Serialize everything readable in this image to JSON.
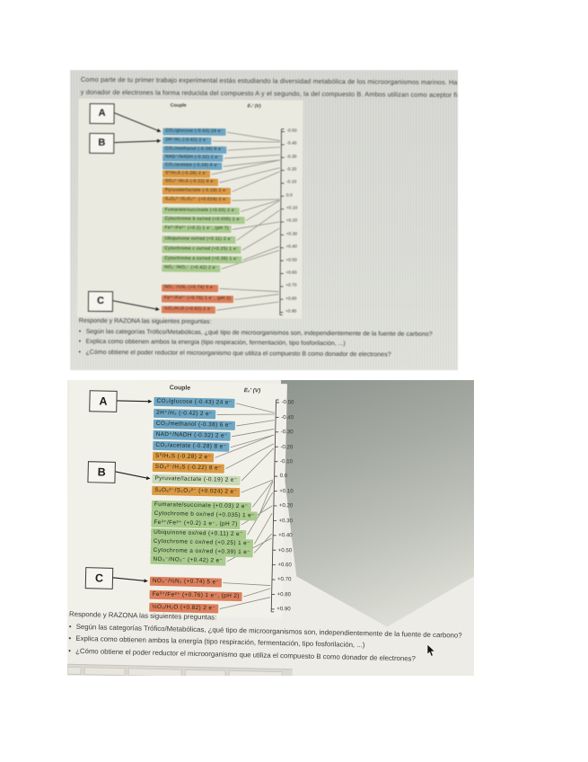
{
  "intro": {
    "line1": "Como parte de tu primer trabajo experimental estás estudiando la diversidad metabólica de los microorganismos marinos. Has",
    "line2": "y donador de electrones la forma reducida del compuesto A y el segundo, la del compuesto B. Ambos utilizan como aceptor final"
  },
  "diagram": {
    "couple_header": "Couple",
    "axis_label": "E₀′ (V)",
    "axis_ticks": [
      "-0.50",
      "-0.40",
      "-0.30",
      "-0.20",
      "-0.10",
      "0.0",
      "+0.10",
      "+0.20",
      "+0.30",
      "+0.40",
      "+0.50",
      "+0.60",
      "+0.70",
      "+0.80",
      "+0.90"
    ],
    "axis_range": [
      -0.5,
      0.9
    ],
    "compound_labels": {
      "a": "A",
      "b": "B",
      "c": "C"
    },
    "rows": [
      {
        "label": "CO₂/glucose (-0.43) 24 e⁻",
        "e0": -0.43,
        "color": "blue"
      },
      {
        "label": "2H⁺/H₂ (-0.42) 2 e⁻",
        "e0": -0.42,
        "color": "blue"
      },
      {
        "label": "CO₂/methanol (-0.38) 6 e⁻",
        "e0": -0.38,
        "color": "blue"
      },
      {
        "label": "NAD⁺/NADH (-0.32) 2 e⁻",
        "e0": -0.32,
        "color": "blue"
      },
      {
        "label": "CO₂/acetate (-0.28) 8 e⁻",
        "e0": -0.28,
        "color": "blue"
      },
      {
        "label": "S⁰/H₂S (-0.28) 2 e⁻",
        "e0": -0.28,
        "color": "orange"
      },
      {
        "label": "SO₄²⁻/H₂S (-0.22) 8 e⁻",
        "e0": -0.22,
        "color": "orange"
      },
      {
        "label": "Pyruvate/lactate (-0.19) 2 e⁻",
        "e0": -0.19,
        "color": "orange"
      },
      {
        "label": "S₄O₆²⁻/S₂O₃²⁻ (+0.024) 2 e⁻",
        "e0": 0.024,
        "color": "orange"
      },
      {
        "label": "Fumarate/succinate (+0.03) 2 e⁻",
        "e0": 0.03,
        "color": "green"
      },
      {
        "label": "Cytochrome b ox/red (+0.035) 1 e⁻",
        "e0": 0.035,
        "color": "green"
      },
      {
        "label": "Fe³⁺/Fe²⁺ (+0.2) 1 e⁻, (pH 7)",
        "e0": 0.2,
        "color": "green"
      },
      {
        "label": "Ubiquinone ox/red (+0.11) 2 e⁻",
        "e0": 0.11,
        "color": "green"
      },
      {
        "label": "Cytochrome c ox/red (+0.25) 1 e⁻",
        "e0": 0.25,
        "color": "green"
      },
      {
        "label": "Cytochrome a ox/red (+0.39) 1 e⁻",
        "e0": 0.39,
        "color": "green"
      },
      {
        "label": "NO₃⁻/NO₂⁻ (+0.42) 2 e⁻",
        "e0": 0.42,
        "color": "green"
      },
      {
        "label": "NO₃⁻/½N₂ (+0.74) 5 e⁻",
        "e0": 0.74,
        "color": "red"
      },
      {
        "label": "Fe³⁺/Fe²⁺ (+0.76) 1 e⁻, (pH 2)",
        "e0": 0.76,
        "color": "red"
      },
      {
        "label": "½O₂/H₂O (+0.82) 2 e⁻",
        "e0": 0.82,
        "color": "red"
      }
    ],
    "instances": {
      "top": {
        "targets": {
          "a": 0,
          "b": 1,
          "c": 18
        },
        "row_color_overrides": {}
      },
      "bottom": {
        "targets": {
          "a": 0,
          "b": 7,
          "c": 16
        },
        "row_color_overrides": {
          "7": "palegreen"
        }
      }
    },
    "palette": {
      "blue": "#6ea6c4",
      "orange": "#dc9a44",
      "green": "#a9cb8e",
      "palegreen": "#c8d9b4",
      "red": "#dd7f5c"
    }
  },
  "questions": {
    "heading": "Responde y RAZONA las siguientes preguntas:",
    "items": [
      "Según las categorías Trófico/Metabólicas, ¿qué tipo de microorganismos son, independientemente de la fuente de carbono?",
      "Explica como obtienen ambos la energía (tipo respiración, fermentación, tipo fosforilación, ...)",
      "¿Cómo obtiene el poder reductor el microorganismo que utiliza el compuesto B como donador de electrones?"
    ]
  }
}
